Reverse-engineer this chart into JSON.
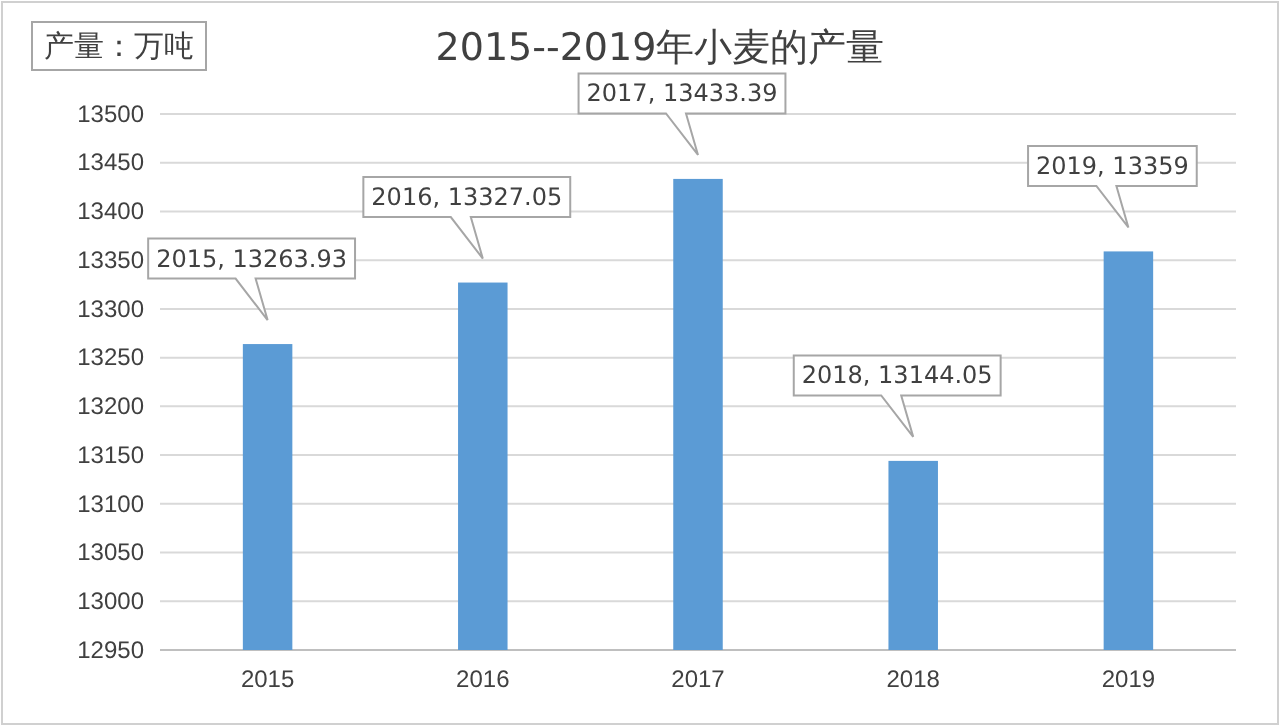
{
  "chart_data": {
    "type": "bar",
    "title": "2015--2019年小麦的产量",
    "ylabel": "产量：万吨",
    "categories": [
      "2015",
      "2016",
      "2017",
      "2018",
      "2019"
    ],
    "values": [
      13263.93,
      13327.05,
      13433.39,
      13144.05,
      13359
    ],
    "value_labels": [
      "2015, 13263.93",
      "2016, 13327.05",
      "2017, 13433.39",
      "2018, 13144.05",
      "2019, 13359"
    ],
    "color": "#5b9bd5",
    "ylim": [
      12950,
      13500
    ],
    "yticks": [
      12950,
      13000,
      13050,
      13100,
      13150,
      13200,
      13250,
      13300,
      13350,
      13400,
      13450,
      13500
    ],
    "grid": "y"
  }
}
